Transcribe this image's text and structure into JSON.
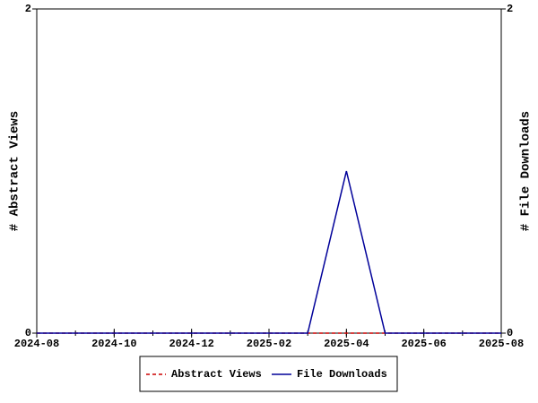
{
  "chart_data": {
    "type": "line",
    "x": [
      "2024-08",
      "2024-09",
      "2024-10",
      "2024-11",
      "2024-12",
      "2025-01",
      "2025-02",
      "2025-03",
      "2025-04",
      "2025-05",
      "2025-06",
      "2025-07",
      "2025-08"
    ],
    "xlim": [
      "2024-08",
      "2025-08"
    ],
    "xticks": [
      "2024-08",
      "2024-10",
      "2024-12",
      "2025-02",
      "2025-04",
      "2025-06",
      "2025-08"
    ],
    "ylabel": "# Abstract Views",
    "y2label": "# File Downloads",
    "ylim": [
      0,
      2
    ],
    "yticks": [
      0,
      2
    ],
    "y2lim": [
      0,
      2
    ],
    "y2ticks": [
      0,
      2
    ],
    "legend": "bottom",
    "series": [
      {
        "name": "Abstract Views",
        "color": "#cc0000",
        "dashed": true,
        "values": [
          0,
          0,
          0,
          0,
          0,
          0,
          0,
          0,
          0,
          0,
          0,
          0,
          0
        ]
      },
      {
        "name": "File Downloads",
        "color": "#000099",
        "axis": "y2",
        "values": [
          0,
          0,
          0,
          0,
          0,
          0,
          0,
          0,
          1,
          0,
          0,
          0,
          0
        ]
      }
    ]
  }
}
